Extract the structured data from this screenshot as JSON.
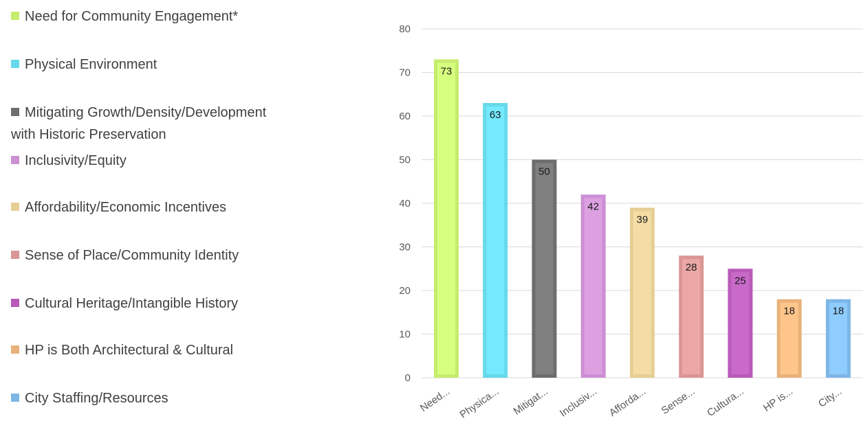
{
  "chart_data": {
    "type": "bar",
    "title": "",
    "xlabel": "",
    "ylabel": "",
    "ylim": [
      0,
      80
    ],
    "yticks": [
      0,
      10,
      20,
      30,
      40,
      50,
      60,
      70,
      80
    ],
    "grid": true,
    "legend_position": "left",
    "categories": [
      "Need for Community Engagement*",
      "Physical Environment",
      "Mitigating Growth/Density/Development\nwith Historic Preservation",
      "Inclusivity/Equity",
      "Affordability/Economic Incentives",
      "Sense of Place/Community Identity",
      "Cultural Heritage/Intangible History",
      "HP is Both Architectural & Cultural",
      "City Staffing/Resources"
    ],
    "tick_labels": [
      "Need...",
      "Physica...",
      "Mitigat...",
      "Inclusiv...",
      "Afforda...",
      "Sense...",
      "Cultura...",
      "HP is...",
      "City..."
    ],
    "values": [
      73,
      63,
      50,
      42,
      39,
      28,
      25,
      18,
      18
    ],
    "colors": [
      "#c6ec6e",
      "#66d9ea",
      "#6d6d6d",
      "#cc8fd4",
      "#e6cf94",
      "#d99694",
      "#b95ab9",
      "#e8b27a",
      "#7eb6e6"
    ],
    "inner_colors": [
      "#d7ff7f",
      "#74e9ff",
      "#808080",
      "#dca0e0",
      "#f4dda5",
      "#eba8a6",
      "#c96ac9",
      "#ffc58b",
      "#8fccff"
    ]
  }
}
